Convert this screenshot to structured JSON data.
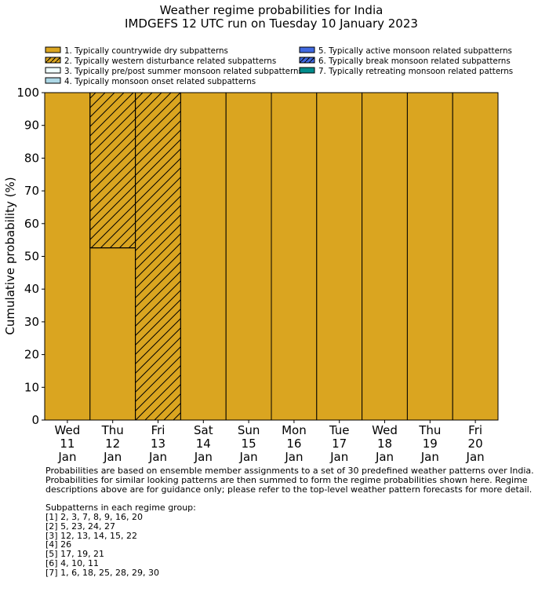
{
  "chart_data": {
    "type": "bar",
    "stacked": true,
    "title": "Weather regime probabilities for India",
    "subtitle": "IMDGEFS 12 UTC run on Tuesday 10 January 2023",
    "ylabel": "Cumulative probability (%)",
    "xlabel": "",
    "ylim": [
      0,
      100
    ],
    "yticks": [
      0,
      10,
      20,
      30,
      40,
      50,
      60,
      70,
      80,
      90,
      100
    ],
    "categories": [
      [
        "Wed",
        "11",
        "Jan"
      ],
      [
        "Thu",
        "12",
        "Jan"
      ],
      [
        "Fri",
        "13",
        "Jan"
      ],
      [
        "Sat",
        "14",
        "Jan"
      ],
      [
        "Sun",
        "15",
        "Jan"
      ],
      [
        "Mon",
        "16",
        "Jan"
      ],
      [
        "Tue",
        "17",
        "Jan"
      ],
      [
        "Wed",
        "18",
        "Jan"
      ],
      [
        "Thu",
        "19",
        "Jan"
      ],
      [
        "Fri",
        "20",
        "Jan"
      ]
    ],
    "legend_placement": "top",
    "series": [
      {
        "name": "1. Typically countrywide dry subpatterns",
        "color": "#DAA520",
        "hatch": false,
        "values": [
          100,
          52.6,
          0,
          100,
          100,
          100,
          100,
          100,
          100,
          100
        ]
      },
      {
        "name": "2. Typically western disturbance related subpatterns",
        "color": "#DAA520",
        "hatch": true,
        "values": [
          0,
          47.4,
          100,
          0,
          0,
          0,
          0,
          0,
          0,
          0
        ]
      },
      {
        "name": "3. Typically pre/post summer monsoon related subpatterns",
        "color": "#F0FFFF",
        "hatch": false,
        "values": [
          0,
          0,
          0,
          0,
          0,
          0,
          0,
          0,
          0,
          0
        ]
      },
      {
        "name": "4. Typically monsoon onset related subpatterns",
        "color": "#ADD8E6",
        "hatch": false,
        "values": [
          0,
          0,
          0,
          0,
          0,
          0,
          0,
          0,
          0,
          0
        ]
      },
      {
        "name": "5. Typically active monsoon related subpatterns",
        "color": "#4169E1",
        "hatch": false,
        "values": [
          0,
          0,
          0,
          0,
          0,
          0,
          0,
          0,
          0,
          0
        ]
      },
      {
        "name": "6. Typically break monsoon related subpatterns",
        "color": "#4169E1",
        "hatch": true,
        "values": [
          0,
          0,
          0,
          0,
          0,
          0,
          0,
          0,
          0,
          0
        ]
      },
      {
        "name": "7. Typically retreating monsoon related patterns",
        "color": "#008B8B",
        "hatch": false,
        "values": [
          0,
          0,
          0,
          0,
          0,
          0,
          0,
          0,
          0,
          0
        ]
      }
    ]
  },
  "notes": {
    "lines": [
      "Probabilities are based on ensemble member assignments to a set of 30 predefined weather patterns over India.",
      "Probabilities for similar looking patterns are then summed to form the regime probabilities shown here. Regime",
      "descriptions above are for guidance only; please refer to the top-level weather pattern forecasts for more detail."
    ],
    "groups_heading": "Subpatterns in each regime group:",
    "groups": [
      "[1] 2, 3, 7, 8, 9, 16, 20",
      "[2] 5, 23, 24, 27",
      "[3] 12, 13, 14, 15, 22",
      "[4] 26",
      "[5] 17, 19, 21",
      "[6] 4, 10, 11",
      "[7] 1, 6, 18, 25, 28, 29, 30"
    ]
  }
}
